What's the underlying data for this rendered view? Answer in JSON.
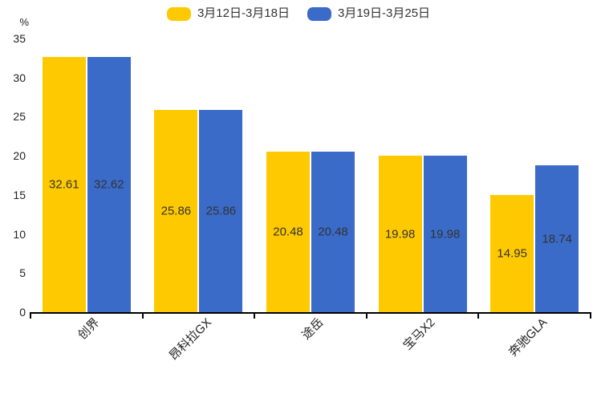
{
  "legend": {
    "items": [
      {
        "label": "3月12日-3月18日",
        "color": "#ffc900",
        "icon": "rounded-swatch"
      },
      {
        "label": "3月19日-3月25日",
        "color": "#3a6bc8",
        "icon": "rounded-swatch"
      }
    ]
  },
  "chart_data": {
    "type": "bar",
    "title": "",
    "ylabel": "%",
    "xlabel": "",
    "categories": [
      "创界",
      "昂科拉GX",
      "途岳",
      "宝马X2",
      "奔驰GLA"
    ],
    "series": [
      {
        "name": "3月12日-3月18日",
        "color": "#ffc900",
        "values": [
          32.61,
          25.86,
          20.48,
          19.98,
          14.95
        ]
      },
      {
        "name": "3月19日-3月25日",
        "color": "#3a6bc8",
        "values": [
          32.62,
          25.86,
          20.48,
          19.98,
          18.74
        ]
      }
    ],
    "value_labels": [
      "32.61",
      "32.62",
      "25.86",
      "25.86",
      "20.48",
      "20.48",
      "19.98",
      "19.98",
      "14.95",
      "18.74"
    ],
    "ylim": [
      0,
      35
    ],
    "yticks": [
      0,
      5,
      10,
      15,
      20,
      25,
      30,
      35
    ],
    "grid": false,
    "legend_position": "top-center",
    "value_label_position": "inside-center",
    "value_label_color": "#333333",
    "axis_color": "#000000",
    "tick_label_color": "#222222"
  }
}
